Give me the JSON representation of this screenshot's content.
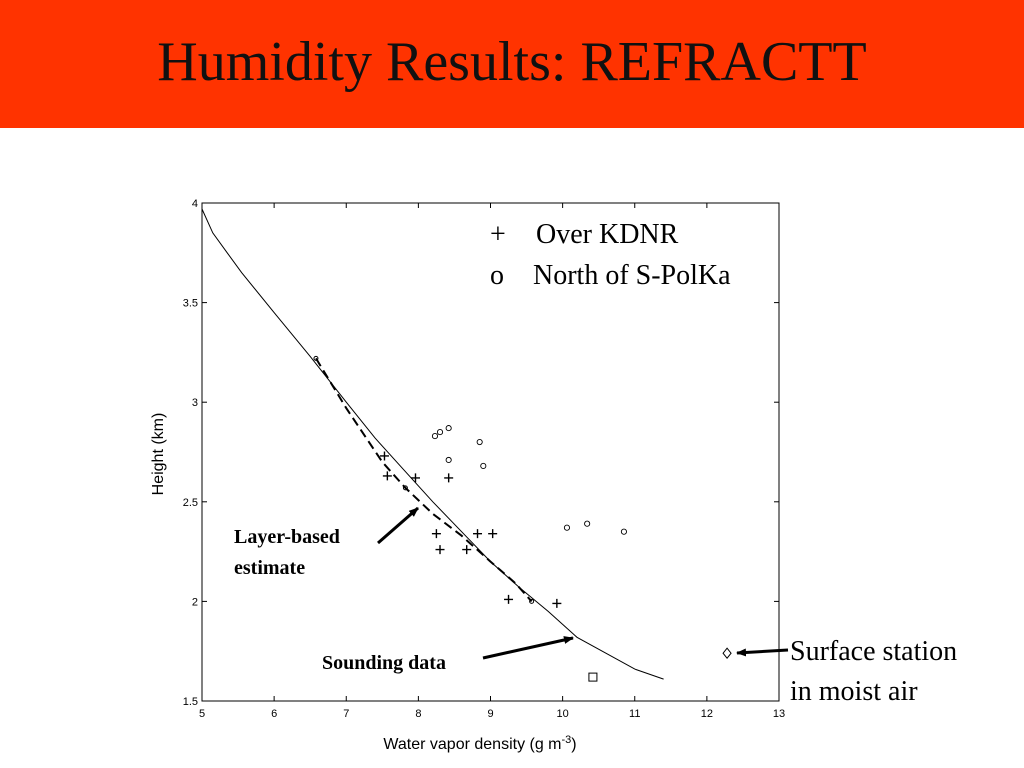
{
  "slide": {
    "title": "Humidity Results: REFRACTT",
    "title_bg": "#ff3300"
  },
  "chart_data": {
    "type": "scatter",
    "title": "",
    "xlabel": "Water vapor density (g m",
    "xlabel_sup": "-3",
    "xlabel_close": ")",
    "ylabel": "Height (km)",
    "xlim": [
      5,
      13
    ],
    "ylim": [
      1.5,
      4
    ],
    "xticks": [
      5,
      6,
      7,
      8,
      9,
      10,
      11,
      12,
      13
    ],
    "yticks": [
      1.5,
      2,
      2.5,
      3,
      3.5,
      4
    ],
    "ytick_labels": [
      "1.5",
      "2",
      "2.5",
      "3",
      "3.5",
      "4"
    ],
    "grid": false,
    "legend": {
      "placement": "top-right",
      "entries": [
        {
          "marker": "+",
          "label": "Over KDNR"
        },
        {
          "marker": "o",
          "label": "North of S-PolKa"
        }
      ]
    },
    "sounding_line": {
      "x": [
        5.0,
        5.15,
        5.35,
        5.55,
        6.0,
        6.5,
        7.0,
        7.4,
        7.8,
        8.2,
        8.6,
        9.0,
        9.4,
        9.8,
        10.2,
        10.6,
        11.0,
        11.4
      ],
      "y": [
        3.97,
        3.85,
        3.75,
        3.65,
        3.45,
        3.23,
        3.0,
        2.82,
        2.66,
        2.5,
        2.35,
        2.2,
        2.07,
        1.95,
        1.82,
        1.74,
        1.66,
        1.61
      ]
    },
    "layer_estimate_line": {
      "x": [
        6.58,
        7.0,
        7.5,
        7.82,
        8.2,
        8.6,
        9.0,
        9.35,
        9.57
      ],
      "y": [
        3.22,
        2.97,
        2.7,
        2.57,
        2.44,
        2.33,
        2.2,
        2.09,
        2.0
      ]
    },
    "layer_estimate_points": {
      "x": [
        6.58,
        7.82,
        9.57
      ],
      "y": [
        3.22,
        2.57,
        2.0
      ]
    },
    "series": [
      {
        "marker": "+",
        "x": [
          7.53,
          7.57,
          7.96,
          8.42,
          8.25,
          8.3,
          8.82,
          9.03,
          8.67,
          9.25,
          9.92
        ],
        "y": [
          2.73,
          2.63,
          2.62,
          2.62,
          2.34,
          2.26,
          2.34,
          2.34,
          2.26,
          2.01,
          1.99
        ]
      },
      {
        "marker": "o",
        "x": [
          8.23,
          8.3,
          8.42,
          8.42,
          8.85,
          8.9,
          10.06,
          10.34,
          10.85
        ],
        "y": [
          2.83,
          2.85,
          2.87,
          2.71,
          2.8,
          2.68,
          2.37,
          2.39,
          2.35
        ]
      }
    ],
    "square_point": {
      "x": 10.42,
      "y": 1.62
    },
    "surface_station": {
      "x": 12.28,
      "y": 1.74
    },
    "annotations": {
      "layer_line1": "Layer-based",
      "layer_line2": "estimate",
      "sounding": "Sounding data",
      "surface_line1": "Surface station",
      "surface_line2": "in moist air"
    }
  }
}
